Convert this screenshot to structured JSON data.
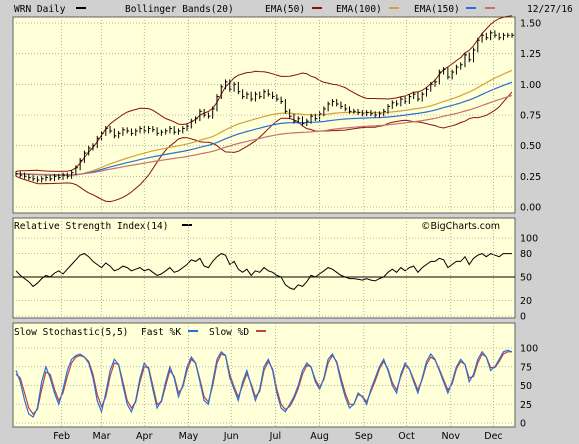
{
  "header": {
    "symbol_label": "WRN Daily",
    "date": "12/27/16",
    "legend": [
      {
        "name": "Bollinger Bands(20)",
        "color": "#000000"
      },
      {
        "name": "EMA(50)",
        "color": "#8b1010"
      },
      {
        "name": "EMA(100)",
        "color": "#d4a040"
      },
      {
        "name": "EMA(150)",
        "color": "#2a6fd6"
      },
      {
        "name": "",
        "color": "#c87070"
      }
    ]
  },
  "rsi_panel": {
    "title": "Relative Strength Index(14)",
    "line_color": "#000000",
    "watermark": "©BigCharts.com"
  },
  "stoch_panel": {
    "title": "Slow Stochastic(5,5)",
    "fast_label": "Fast %K",
    "fast_color": "#2a6fd6",
    "slow_label": "Slow %D",
    "slow_color": "#c04040"
  },
  "colors": {
    "plot_bg": "#ffffd8",
    "frame_bg": "#d0d0d0",
    "grid": "#a0a0a0"
  },
  "x_axis": {
    "months": [
      "Feb",
      "Mar",
      "Apr",
      "May",
      "Jun",
      "Jul",
      "Aug",
      "Sep",
      "Oct",
      "Nov",
      "Dec"
    ]
  },
  "chart_data": [
    {
      "type": "ohlc",
      "name": "price",
      "yticks": [
        0.0,
        0.25,
        0.5,
        0.75,
        1.0,
        1.25,
        1.5
      ],
      "ytick_labels": [
        "0.00",
        "0.25",
        "0.50",
        "0.75",
        "1.00",
        "1.25",
        "1.50"
      ],
      "ylim": [
        0,
        1.5
      ],
      "x": [
        0,
        3,
        6,
        9,
        12,
        15,
        18,
        21,
        24,
        27,
        30,
        33,
        36,
        39,
        42,
        45,
        48,
        51,
        54,
        57,
        60,
        63,
        66,
        69,
        72,
        75,
        78,
        81,
        84,
        87,
        90,
        93,
        96,
        99,
        102,
        105,
        108,
        111,
        114,
        117,
        120,
        123,
        126,
        129,
        132,
        135,
        138,
        141,
        144,
        147,
        150,
        153,
        156,
        159,
        162,
        165,
        168,
        171,
        174,
        177,
        180,
        183,
        186,
        189,
        192,
        195,
        198,
        201,
        204,
        207,
        210,
        213,
        216,
        219,
        222,
        225,
        228,
        231,
        234,
        237,
        240,
        243,
        246,
        249,
        252,
        255,
        258,
        261,
        264,
        267,
        270,
        273,
        276,
        279,
        282,
        285,
        288,
        291,
        294,
        297,
        300,
        303,
        306,
        309,
        312,
        315,
        318,
        321,
        324,
        327,
        330,
        333,
        336,
        339,
        342,
        345,
        348
      ],
      "close": [
        0.27,
        0.26,
        0.25,
        0.24,
        0.23,
        0.22,
        0.23,
        0.24,
        0.23,
        0.25,
        0.24,
        0.26,
        0.25,
        0.28,
        0.32,
        0.38,
        0.44,
        0.48,
        0.5,
        0.56,
        0.6,
        0.64,
        0.62,
        0.58,
        0.6,
        0.63,
        0.62,
        0.6,
        0.62,
        0.64,
        0.62,
        0.64,
        0.63,
        0.6,
        0.61,
        0.62,
        0.64,
        0.61,
        0.62,
        0.64,
        0.66,
        0.7,
        0.72,
        0.78,
        0.75,
        0.74,
        0.8,
        0.9,
        0.98,
        1.02,
        0.96,
        1.0,
        0.94,
        0.9,
        0.92,
        0.88,
        0.92,
        0.9,
        0.94,
        0.92,
        0.9,
        0.88,
        0.86,
        0.78,
        0.74,
        0.7,
        0.72,
        0.68,
        0.7,
        0.74,
        0.72,
        0.76,
        0.8,
        0.84,
        0.86,
        0.84,
        0.82,
        0.8,
        0.78,
        0.78,
        0.77,
        0.76,
        0.77,
        0.76,
        0.75,
        0.76,
        0.78,
        0.82,
        0.85,
        0.84,
        0.88,
        0.86,
        0.9,
        0.92,
        0.88,
        0.92,
        0.96,
        1.0,
        1.02,
        1.1,
        1.12,
        1.06,
        1.1,
        1.14,
        1.16,
        1.24,
        1.2,
        1.28,
        1.36,
        1.4,
        1.38,
        1.42,
        1.4,
        1.38,
        1.4,
        1.4,
        1.4
      ]
    },
    {
      "type": "line",
      "name": "rsi",
      "yticks": [
        0,
        20,
        50,
        80,
        100
      ],
      "ytick_labels": [
        "0",
        "20",
        "50",
        "80",
        "100"
      ],
      "ylim": [
        0,
        100
      ],
      "x": [
        0,
        3,
        6,
        9,
        12,
        15,
        18,
        21,
        24,
        27,
        30,
        33,
        36,
        39,
        42,
        45,
        48,
        51,
        54,
        57,
        60,
        63,
        66,
        69,
        72,
        75,
        78,
        81,
        84,
        87,
        90,
        93,
        96,
        99,
        102,
        105,
        108,
        111,
        114,
        117,
        120,
        123,
        126,
        129,
        132,
        135,
        138,
        141,
        144,
        147,
        150,
        153,
        156,
        159,
        162,
        165,
        168,
        171,
        174,
        177,
        180,
        183,
        186,
        189,
        192,
        195,
        198,
        201,
        204,
        207,
        210,
        213,
        216,
        219,
        222,
        225,
        228,
        231,
        234,
        237,
        240,
        243,
        246,
        249,
        252,
        255,
        258,
        261,
        264,
        267,
        270,
        273,
        276,
        279,
        282,
        285,
        288,
        291,
        294,
        297,
        300,
        303,
        306,
        309,
        312,
        315,
        318,
        321,
        324,
        327,
        330,
        333,
        336,
        339,
        342,
        345,
        348
      ],
      "values": [
        58,
        52,
        48,
        44,
        38,
        42,
        48,
        52,
        50,
        55,
        58,
        54,
        60,
        66,
        72,
        78,
        80,
        76,
        70,
        66,
        62,
        68,
        64,
        58,
        60,
        64,
        62,
        58,
        60,
        62,
        58,
        60,
        56,
        52,
        54,
        58,
        62,
        56,
        58,
        62,
        66,
        72,
        70,
        74,
        64,
        62,
        70,
        76,
        80,
        78,
        66,
        70,
        60,
        56,
        60,
        52,
        58,
        56,
        62,
        58,
        56,
        52,
        50,
        40,
        36,
        34,
        40,
        38,
        44,
        52,
        50,
        54,
        58,
        62,
        60,
        56,
        52,
        50,
        48,
        48,
        47,
        46,
        48,
        46,
        45,
        48,
        50,
        56,
        60,
        56,
        62,
        58,
        62,
        64,
        56,
        62,
        66,
        70,
        70,
        74,
        72,
        62,
        66,
        70,
        70,
        76,
        66,
        74,
        78,
        80,
        76,
        80,
        78,
        76,
        80,
        80,
        80
      ]
    },
    {
      "type": "line",
      "name": "stochastic",
      "yticks": [
        0,
        25,
        50,
        75,
        100
      ],
      "ytick_labels": [
        "0",
        "25",
        "50",
        "75",
        "100"
      ],
      "ylim": [
        0,
        100
      ],
      "series": [
        {
          "name": "Fast %K",
          "values": [
            70,
            55,
            30,
            12,
            8,
            20,
            55,
            75,
            60,
            40,
            25,
            45,
            70,
            85,
            90,
            92,
            88,
            80,
            60,
            30,
            15,
            40,
            70,
            85,
            78,
            50,
            25,
            15,
            30,
            60,
            80,
            72,
            45,
            20,
            30,
            55,
            75,
            60,
            35,
            50,
            75,
            88,
            80,
            55,
            30,
            25,
            55,
            85,
            95,
            90,
            60,
            45,
            30,
            55,
            70,
            50,
            30,
            45,
            75,
            85,
            70,
            40,
            20,
            15,
            25,
            35,
            50,
            70,
            80,
            75,
            55,
            45,
            60,
            85,
            92,
            80,
            55,
            35,
            20,
            25,
            40,
            35,
            25,
            45,
            60,
            75,
            85,
            70,
            50,
            40,
            65,
            80,
            72,
            55,
            40,
            60,
            82,
            92,
            85,
            70,
            55,
            40,
            55,
            75,
            85,
            78,
            55,
            65,
            85,
            95,
            88,
            70,
            75,
            85,
            95,
            97,
            95
          ]
        },
        {
          "name": "Slow %D",
          "values": [
            65,
            60,
            40,
            20,
            12,
            18,
            45,
            68,
            65,
            45,
            30,
            40,
            62,
            80,
            88,
            90,
            88,
            82,
            65,
            38,
            22,
            35,
            62,
            80,
            78,
            55,
            30,
            20,
            28,
            55,
            75,
            74,
            50,
            25,
            28,
            50,
            70,
            62,
            40,
            48,
            70,
            85,
            80,
            58,
            35,
            28,
            50,
            80,
            92,
            90,
            65,
            48,
            35,
            50,
            66,
            52,
            35,
            42,
            70,
            82,
            72,
            45,
            25,
            18,
            22,
            32,
            46,
            65,
            77,
            75,
            58,
            48,
            58,
            80,
            90,
            82,
            60,
            40,
            25,
            25,
            38,
            36,
            28,
            42,
            56,
            72,
            82,
            72,
            54,
            44,
            62,
            77,
            72,
            58,
            44,
            58,
            78,
            88,
            84,
            72,
            58,
            44,
            52,
            72,
            82,
            78,
            60,
            62,
            80,
            92,
            88,
            74,
            74,
            82,
            92,
            95,
            95
          ]
        }
      ]
    }
  ]
}
